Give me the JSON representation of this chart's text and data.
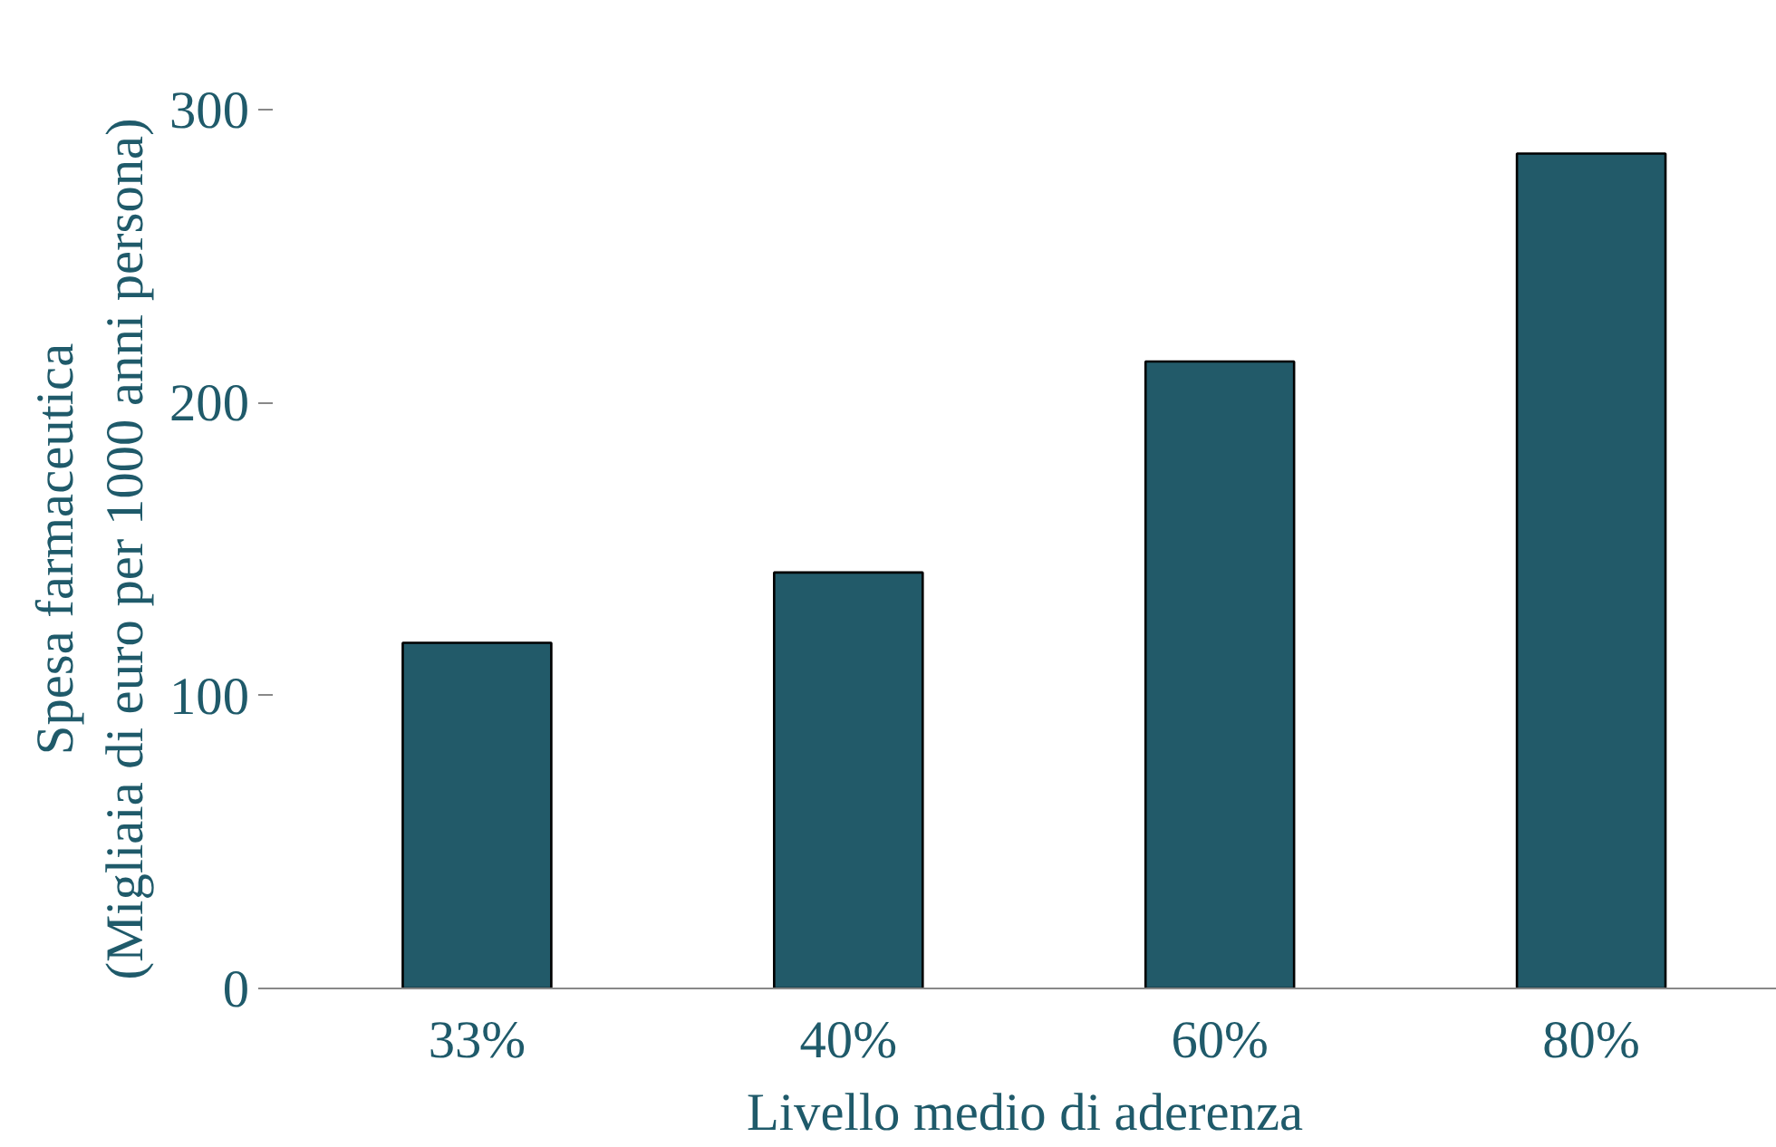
{
  "chart_data": {
    "type": "bar",
    "xlabel": "Livello medio di aderenza",
    "ylabel": "Spesa farmaceutica\n(Migliaia di euro per 1000 anni persona)",
    "categories": [
      "33%",
      "40%",
      "60%",
      "80%"
    ],
    "values": [
      118,
      142,
      214,
      285
    ],
    "color": "#225a69",
    "ylim": [
      0,
      300
    ],
    "yticks": [
      0,
      100,
      200,
      300
    ],
    "grid": false
  }
}
